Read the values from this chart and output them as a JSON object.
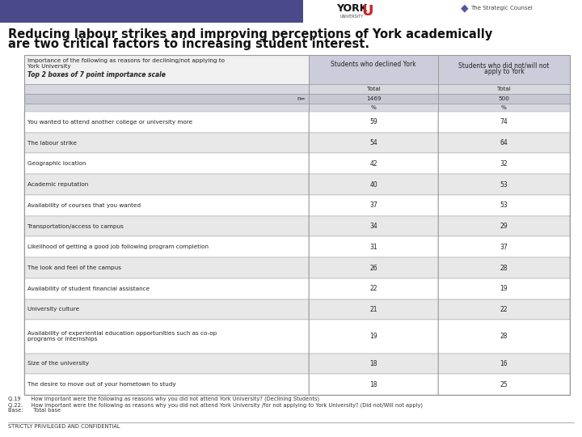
{
  "title_line1": "Reducing labour strikes and improving perceptions of York academically",
  "title_line2": "are two critical factors to increasing student interest.",
  "rows": [
    {
      "label": "You wanted to attend another college or university more",
      "val1": "59",
      "val2": "74",
      "shaded": false
    },
    {
      "label": "The labour strike",
      "val1": "54",
      "val2": "64",
      "shaded": true
    },
    {
      "label": "Geographic location",
      "val1": "42",
      "val2": "32",
      "shaded": false
    },
    {
      "label": "Academic reputation",
      "val1": "40",
      "val2": "53",
      "shaded": true
    },
    {
      "label": "Availability of courses that you wanted",
      "val1": "37",
      "val2": "53",
      "shaded": false
    },
    {
      "label": "Transportation/access to campus",
      "val1": "34",
      "val2": "29",
      "shaded": true
    },
    {
      "label": "Likelihood of getting a good job following program completion",
      "val1": "31",
      "val2": "37",
      "shaded": false
    },
    {
      "label": "The look and feel of the campus",
      "val1": "26",
      "val2": "28",
      "shaded": true
    },
    {
      "label": "Availability of student financial assistance",
      "val1": "22",
      "val2": "19",
      "shaded": false
    },
    {
      "label": "University culture",
      "val1": "21",
      "val2": "22",
      "shaded": true
    },
    {
      "label": "Availability of experiential education opportunities such as co-op\nprograms or internships",
      "val1": "19",
      "val2": "28",
      "shaded": false
    },
    {
      "label": "Size of the university",
      "val1": "18",
      "val2": "16",
      "shaded": true
    },
    {
      "label": "The desire to move out of your hometown to study",
      "val1": "18",
      "val2": "25",
      "shaded": false
    }
  ],
  "footnote1": "Q.19      How important were the following as reasons why you did not attend York University? (Declining Students)",
  "footnote2": "Q.22.     How important were the following as reasons why you did not attend York University /for not applying to York University? (Did not/Will not apply)",
  "footnote3": "Base:      Total base",
  "footnote4": "STRICTLY PRIVILEGED AND CONFIDENTIAL",
  "header_bar_color": "#4a4a8a",
  "shaded_row_color": "#e8e8e8",
  "white_row_color": "#ffffff",
  "header_bg_col0": "#f0f0f0",
  "header_bg_col12": "#ccccda",
  "total_row_bg": "#d8d8e0",
  "n_row_bg": "#c8c8d4",
  "pct_row_bg": "#d8d8e0",
  "border_color": "#999999",
  "title_color": "#111111"
}
